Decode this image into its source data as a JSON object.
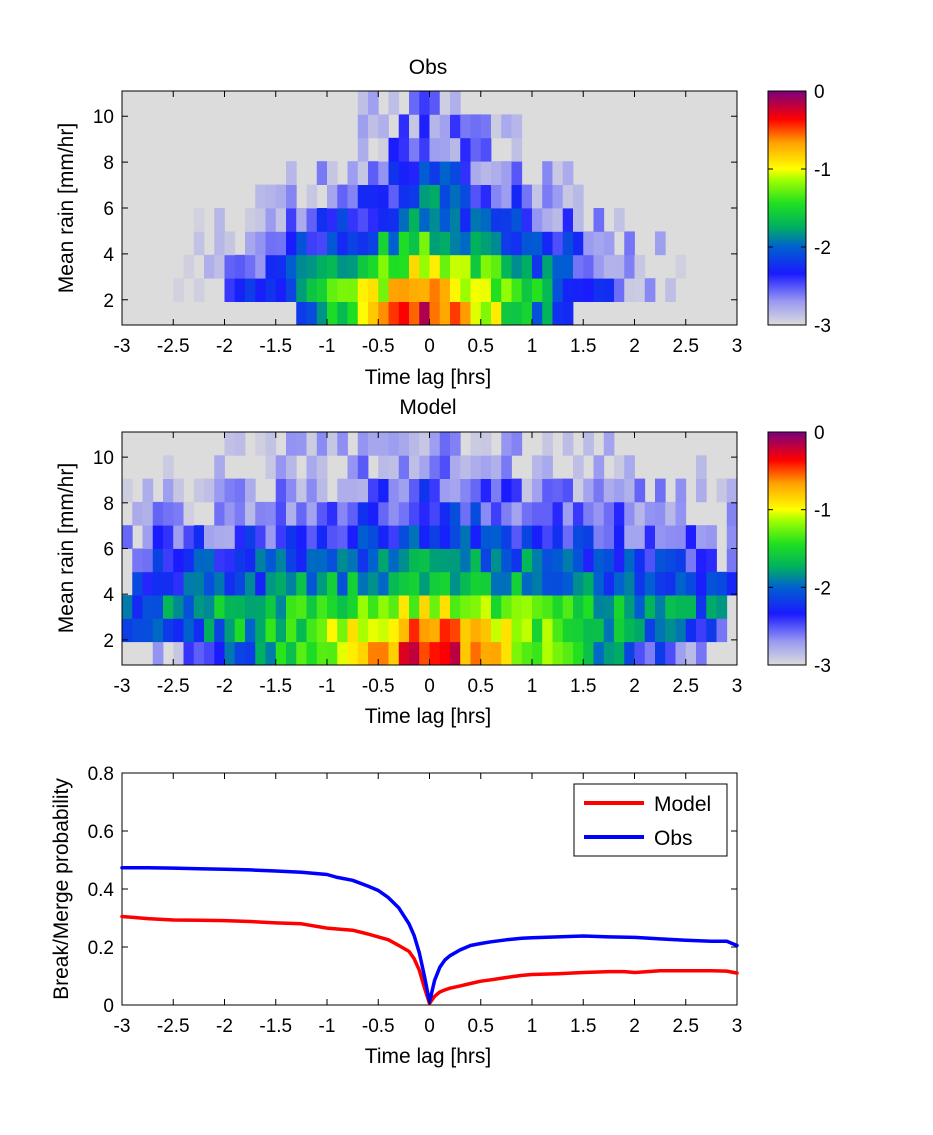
{
  "chart_data": [
    {
      "type": "heatmap",
      "title": "Obs",
      "xlabel": "Time lag [hrs]",
      "ylabel": "Mean rain [mm/hr]",
      "xlim": [
        -3,
        3
      ],
      "ylim": [
        0.9,
        11.1
      ],
      "xticks": [
        -3,
        -2.5,
        -2,
        -1.5,
        -1,
        -0.5,
        0,
        0.5,
        1,
        1.5,
        2,
        2.5,
        3
      ],
      "yticks": [
        2,
        4,
        6,
        8,
        10
      ],
      "colorbar": {
        "ticks": [
          0,
          -1,
          -2,
          -3
        ],
        "clim": [
          -3,
          0
        ],
        "scale": "log10 probability"
      },
      "background_color": "#dcdcdc",
      "row_centers": [
        1.5,
        2.5,
        3.5,
        4.5,
        5.5,
        6.5,
        7.5,
        8.5,
        9.5,
        10.5
      ],
      "row_profile": {
        "center_peak": [
          -0.2,
          -0.5,
          -1.0,
          -1.5,
          -1.8,
          -2.0,
          -2.2,
          -2.4,
          -2.5,
          -2.6
        ],
        "half_width_hrs": [
          1.5,
          2.7,
          3.0,
          2.9,
          2.8,
          2.2,
          1.6,
          1.3,
          0.8,
          0.5
        ],
        "decay_scale_hrs": [
          0.65,
          0.9,
          1.1,
          1.5,
          1.6,
          1.5,
          1.6,
          1.5,
          1.5,
          1.4
        ]
      }
    },
    {
      "type": "heatmap",
      "title": "Model",
      "xlabel": "Time lag [hrs]",
      "ylabel": "Mean rain [mm/hr]",
      "xlim": [
        -3,
        3
      ],
      "ylim": [
        0.9,
        11.1
      ],
      "xticks": [
        -3,
        -2.5,
        -2,
        -1.5,
        -1,
        -0.5,
        0,
        0.5,
        1,
        1.5,
        2,
        2.5,
        3
      ],
      "yticks": [
        2,
        4,
        6,
        8,
        10
      ],
      "colorbar": {
        "ticks": [
          0,
          -1,
          -2,
          -3
        ],
        "clim": [
          -3,
          0
        ],
        "scale": "log10 probability"
      },
      "background_color": "#dcdcdc",
      "row_centers": [
        1.5,
        2.5,
        3.5,
        4.5,
        5.5,
        6.5,
        7.5,
        8.5,
        9.5,
        10.5
      ],
      "row_profile": {
        "center_peak": [
          -0.2,
          -0.6,
          -1.1,
          -1.6,
          -1.8,
          -2.1,
          -2.3,
          -2.5,
          -2.7,
          -2.75
        ],
        "half_width_hrs": [
          3.0,
          3.0,
          3.0,
          3.0,
          3.0,
          3.0,
          3.0,
          3.0,
          3.0,
          3.0
        ],
        "decay_scale_hrs": [
          1.0,
          1.6,
          3.0,
          4.0,
          5.0,
          5.0,
          5.0,
          6.0,
          6.0,
          6.0
        ]
      }
    },
    {
      "type": "line",
      "title": "",
      "xlabel": "Time lag [hrs]",
      "ylabel": "Break/Merge probability",
      "xlim": [
        -3,
        3
      ],
      "ylim": [
        0,
        0.8
      ],
      "xticks": [
        -3,
        -2.5,
        -2,
        -1.5,
        -1,
        -0.5,
        0,
        0.5,
        1,
        1.5,
        2,
        2.5,
        3
      ],
      "yticks": [
        0,
        0.2,
        0.4,
        0.6,
        0.8
      ],
      "legend": "top-right",
      "series": [
        {
          "name": "Model",
          "color": "#ff0000",
          "x": [
            -3,
            -2.75,
            -2.5,
            -2.25,
            -2,
            -1.75,
            -1.5,
            -1.25,
            -1,
            -0.9,
            -0.75,
            -0.6,
            -0.5,
            -0.4,
            -0.3,
            -0.2,
            -0.15,
            -0.1,
            -0.05,
            0,
            0.05,
            0.1,
            0.15,
            0.2,
            0.3,
            0.4,
            0.5,
            0.6,
            0.75,
            0.9,
            1,
            1.25,
            1.5,
            1.75,
            1.9,
            2,
            2.25,
            2.5,
            2.75,
            2.9,
            3
          ],
          "y": [
            0.305,
            0.298,
            0.293,
            0.292,
            0.291,
            0.288,
            0.283,
            0.28,
            0.265,
            0.262,
            0.258,
            0.245,
            0.235,
            0.225,
            0.205,
            0.185,
            0.16,
            0.12,
            0.06,
            0.005,
            0.03,
            0.045,
            0.052,
            0.058,
            0.066,
            0.074,
            0.082,
            0.087,
            0.095,
            0.102,
            0.105,
            0.108,
            0.112,
            0.115,
            0.115,
            0.112,
            0.118,
            0.118,
            0.118,
            0.117,
            0.11
          ]
        },
        {
          "name": "Obs",
          "color": "#0000ff",
          "x": [
            -3,
            -2.75,
            -2.5,
            -2.25,
            -2,
            -1.75,
            -1.5,
            -1.25,
            -1,
            -0.9,
            -0.75,
            -0.6,
            -0.5,
            -0.4,
            -0.3,
            -0.2,
            -0.15,
            -0.1,
            -0.05,
            0,
            0.05,
            0.1,
            0.15,
            0.2,
            0.3,
            0.4,
            0.5,
            0.6,
            0.75,
            0.9,
            1,
            1.25,
            1.5,
            1.75,
            2,
            2.25,
            2.5,
            2.75,
            2.9,
            3
          ],
          "y": [
            0.473,
            0.473,
            0.472,
            0.47,
            0.468,
            0.466,
            0.462,
            0.458,
            0.45,
            0.44,
            0.43,
            0.41,
            0.395,
            0.37,
            0.335,
            0.28,
            0.24,
            0.18,
            0.1,
            0.01,
            0.085,
            0.13,
            0.155,
            0.17,
            0.19,
            0.205,
            0.212,
            0.218,
            0.225,
            0.23,
            0.232,
            0.235,
            0.238,
            0.235,
            0.233,
            0.228,
            0.223,
            0.22,
            0.22,
            0.205
          ]
        }
      ]
    }
  ]
}
